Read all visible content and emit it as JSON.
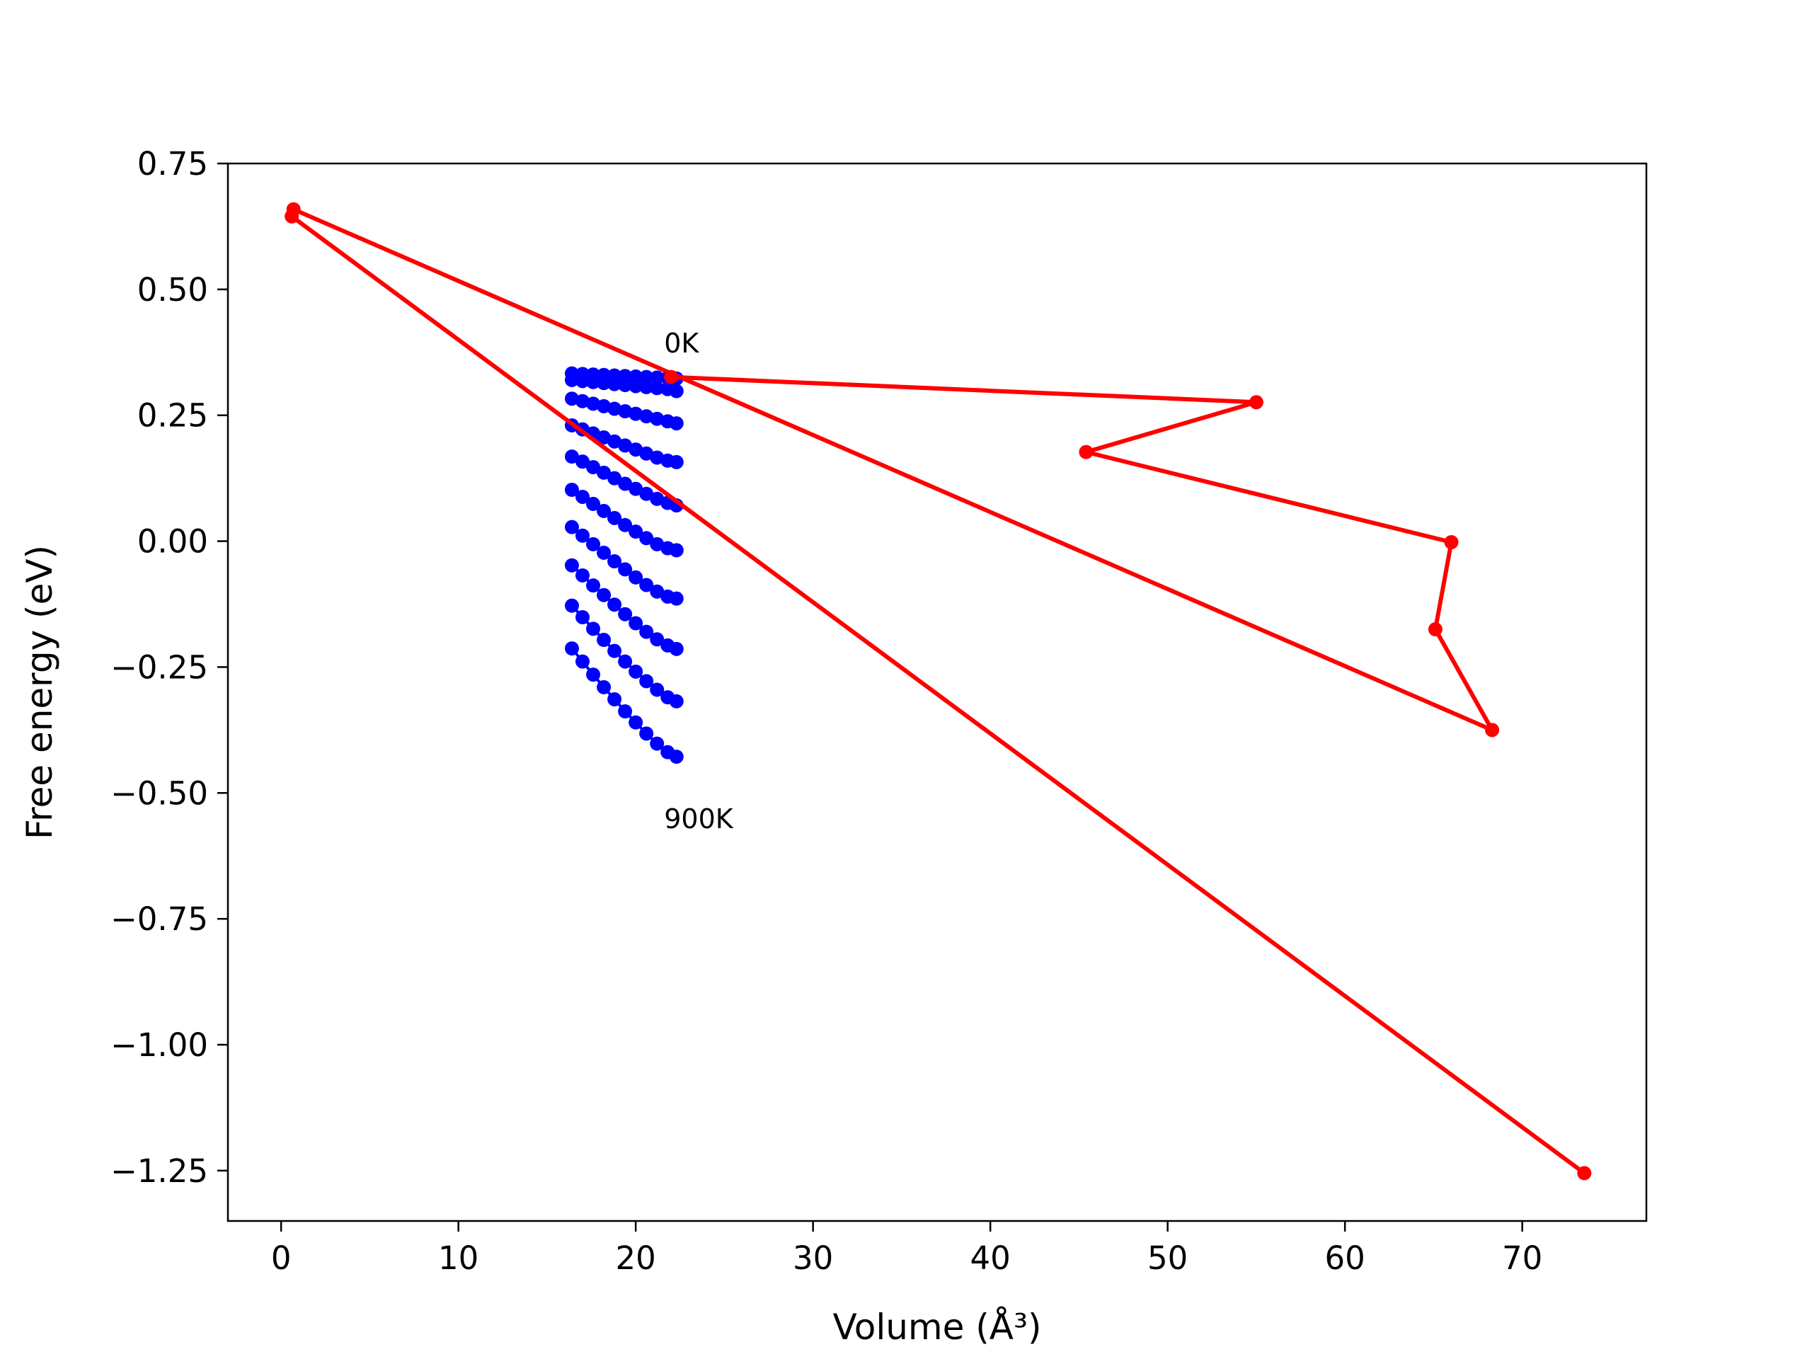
{
  "chart_data": {
    "type": "scatter",
    "xlabel": "Volume (Å³)",
    "ylabel": "Free energy (eV)",
    "xlim": [
      -3,
      77
    ],
    "ylim": [
      -1.35,
      0.75
    ],
    "grid": false,
    "x_ticks": [
      0,
      10,
      20,
      30,
      40,
      50,
      60,
      70
    ],
    "x_tick_labels": [
      "0",
      "10",
      "20",
      "30",
      "40",
      "50",
      "60",
      "70"
    ],
    "y_ticks": [
      0.75,
      0.5,
      0.25,
      0.0,
      -0.25,
      -0.5,
      -0.75,
      -1.0,
      -1.25
    ],
    "y_tick_labels": [
      "0.75",
      "0.50",
      "0.25",
      "0.00",
      "−0.25",
      "−0.50",
      "−0.75",
      "−1.00",
      "−1.25"
    ],
    "annotations": [
      {
        "text": "0K",
        "x": 21.6,
        "y": 0.375
      },
      {
        "text": "900K",
        "x": 21.6,
        "y": -0.57
      }
    ],
    "isotherms": {
      "color": "#0000ff",
      "x": [
        16.4,
        17.0,
        17.6,
        18.2,
        18.8,
        19.4,
        20.0,
        20.6,
        21.2,
        21.8,
        22.3
      ],
      "series": [
        {
          "values": [
            0.333,
            0.332,
            0.331,
            0.33,
            0.329,
            0.328,
            0.327,
            0.326,
            0.325,
            0.324,
            0.323
          ]
        },
        {
          "values": [
            0.32,
            0.318,
            0.316,
            0.314,
            0.312,
            0.31,
            0.308,
            0.306,
            0.304,
            0.302,
            0.298
          ]
        },
        {
          "values": [
            0.283,
            0.278,
            0.273,
            0.268,
            0.263,
            0.258,
            0.253,
            0.248,
            0.243,
            0.238,
            0.234
          ]
        },
        {
          "values": [
            0.23,
            0.222,
            0.214,
            0.206,
            0.198,
            0.19,
            0.182,
            0.174,
            0.166,
            0.16,
            0.157
          ]
        },
        {
          "values": [
            0.168,
            0.158,
            0.147,
            0.136,
            0.125,
            0.114,
            0.104,
            0.094,
            0.084,
            0.076,
            0.071
          ]
        },
        {
          "values": [
            0.102,
            0.088,
            0.074,
            0.06,
            0.046,
            0.032,
            0.019,
            0.006,
            -0.006,
            -0.014,
            -0.018
          ]
        },
        {
          "values": [
            0.028,
            0.011,
            -0.006,
            -0.023,
            -0.04,
            -0.056,
            -0.072,
            -0.087,
            -0.1,
            -0.11,
            -0.114
          ]
        },
        {
          "values": [
            -0.048,
            -0.068,
            -0.088,
            -0.107,
            -0.126,
            -0.145,
            -0.163,
            -0.18,
            -0.195,
            -0.207,
            -0.214
          ]
        },
        {
          "values": [
            -0.128,
            -0.151,
            -0.174,
            -0.196,
            -0.218,
            -0.239,
            -0.259,
            -0.278,
            -0.295,
            -0.31,
            -0.318
          ]
        },
        {
          "values": [
            -0.213,
            -0.239,
            -0.265,
            -0.29,
            -0.314,
            -0.338,
            -0.36,
            -0.382,
            -0.402,
            -0.419,
            -0.428
          ]
        }
      ]
    },
    "path": {
      "color": "#ff0000",
      "points": [
        [
          22.0,
          0.326
        ],
        [
          55.0,
          0.276
        ],
        [
          45.4,
          0.177
        ],
        [
          66.0,
          -0.002
        ],
        [
          65.1,
          -0.175
        ],
        [
          68.3,
          -0.375
        ],
        [
          0.7,
          0.659
        ],
        [
          0.6,
          0.645
        ],
        [
          73.5,
          -1.255
        ]
      ]
    }
  }
}
